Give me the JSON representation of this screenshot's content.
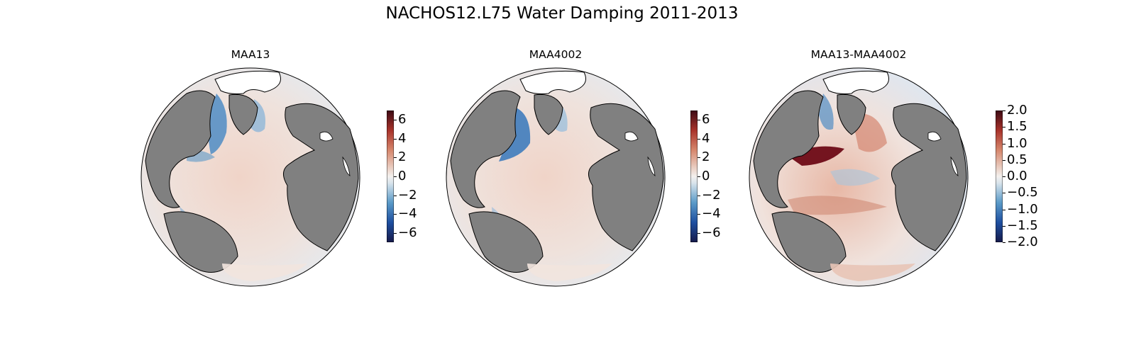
{
  "figure": {
    "title": "NACHOS12.L75 Water Damping 2011-2013"
  },
  "colors": {
    "land": "#808080",
    "coast": "#000000",
    "neg_strong": "#1a2c6b",
    "neg": "#2b6cb0",
    "neutral": "#f2efee",
    "pos": "#d9836c",
    "pos_strong": "#5a0a12"
  },
  "panels": [
    {
      "id": "maa13",
      "title": "MAA13",
      "colorbar": {
        "min": -7,
        "max": 7,
        "ticks": [
          "6",
          "4",
          "2",
          "0",
          "−2",
          "−4",
          "−6"
        ],
        "tick_values": [
          6,
          4,
          2,
          0,
          -2,
          -4,
          -6
        ]
      }
    },
    {
      "id": "maa4002",
      "title": "MAA4002",
      "colorbar": {
        "min": -7,
        "max": 7,
        "ticks": [
          "6",
          "4",
          "2",
          "0",
          "−2",
          "−4",
          "−6"
        ],
        "tick_values": [
          6,
          4,
          2,
          0,
          -2,
          -4,
          -6
        ]
      }
    },
    {
      "id": "diff",
      "title": "MAA13-MAA4002",
      "colorbar": {
        "min": -2,
        "max": 2,
        "ticks": [
          "2.0",
          "1.5",
          "1.0",
          "0.5",
          "0.0",
          "−0.5",
          "−1.0",
          "−1.5",
          "−2.0"
        ],
        "tick_values": [
          2.0,
          1.5,
          1.0,
          0.5,
          0.0,
          -0.5,
          -1.0,
          -1.5,
          -2.0
        ]
      }
    }
  ]
}
